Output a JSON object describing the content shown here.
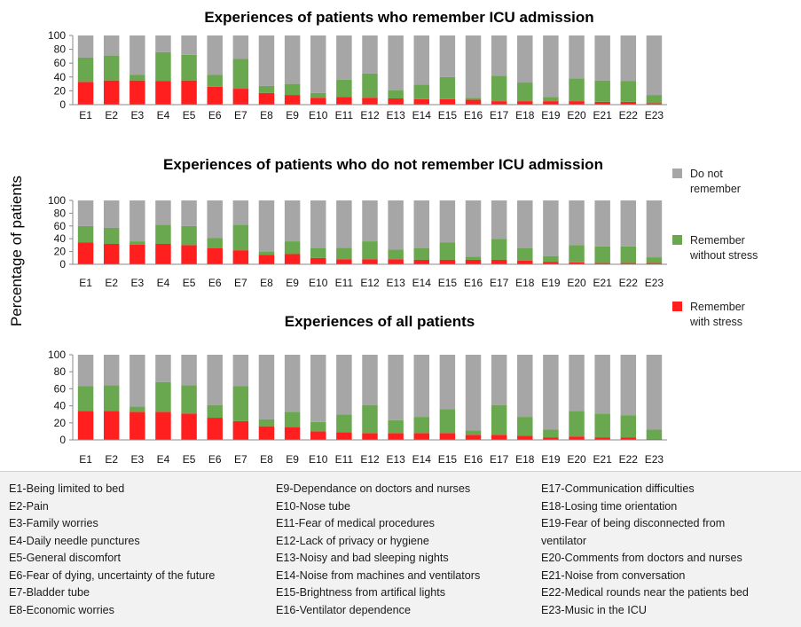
{
  "y_axis_label": "Percentage of patients",
  "legend": [
    {
      "key": "dnr",
      "lines": [
        "Do not",
        "remember"
      ],
      "color": "#a6a6a6"
    },
    {
      "key": "rws",
      "lines": [
        "Remember",
        "without stress"
      ],
      "color": "#6aa84f"
    },
    {
      "key": "rs",
      "lines": [
        "Remember",
        "with stress"
      ],
      "color": "#ff1f1f"
    }
  ],
  "chart_data": [
    {
      "type": "bar",
      "stacked": true,
      "title": "Experiences of patients who remember ICU admission",
      "categories": [
        "E1",
        "E2",
        "E3",
        "E4",
        "E5",
        "E6",
        "E7",
        "E8",
        "E9",
        "E10",
        "E11",
        "E12",
        "E13",
        "E14",
        "E15",
        "E16",
        "E17",
        "E18",
        "E19",
        "E20",
        "E21",
        "E22",
        "E23"
      ],
      "ylim": [
        0,
        100
      ],
      "yticks": [
        0,
        20,
        40,
        60,
        80,
        100
      ],
      "series": [
        {
          "name": "Remember with stress",
          "values": [
            33,
            35,
            35,
            34,
            35,
            26,
            23,
            17,
            14,
            10,
            11,
            10,
            9,
            8,
            8,
            7,
            5,
            5,
            5,
            5,
            4,
            4,
            2
          ]
        },
        {
          "name": "Remember without stress",
          "values": [
            35,
            36,
            8,
            42,
            37,
            17,
            43,
            10,
            16,
            7,
            25,
            35,
            12,
            21,
            32,
            3,
            37,
            27,
            6,
            33,
            31,
            30,
            12
          ]
        },
        {
          "name": "Do not remember",
          "values": [
            32,
            29,
            57,
            24,
            28,
            57,
            34,
            73,
            70,
            83,
            64,
            55,
            79,
            71,
            60,
            90,
            58,
            68,
            89,
            62,
            65,
            66,
            86
          ]
        }
      ]
    },
    {
      "type": "bar",
      "stacked": true,
      "title": "Experiences of patients who do not remember ICU admission",
      "categories": [
        "E1",
        "E2",
        "E3",
        "E4",
        "E5",
        "E6",
        "E7",
        "E8",
        "E9",
        "E10",
        "E11",
        "E12",
        "E13",
        "E14",
        "E15",
        "E16",
        "E17",
        "E18",
        "E19",
        "E20",
        "E21",
        "E22",
        "E23"
      ],
      "ylim": [
        0,
        100
      ],
      "yticks": [
        0,
        20,
        40,
        60,
        80,
        100
      ],
      "series": [
        {
          "name": "Remember with stress",
          "values": [
            34,
            32,
            31,
            32,
            30,
            25,
            22,
            15,
            16,
            10,
            8,
            8,
            8,
            7,
            7,
            7,
            7,
            6,
            4,
            3,
            2,
            2,
            2
          ]
        },
        {
          "name": "Remember without stress",
          "values": [
            26,
            25,
            5,
            30,
            30,
            16,
            40,
            5,
            20,
            15,
            18,
            28,
            15,
            18,
            27,
            5,
            33,
            19,
            9,
            27,
            26,
            26,
            9
          ]
        },
        {
          "name": "Do not remember",
          "values": [
            40,
            43,
            64,
            38,
            40,
            59,
            38,
            80,
            64,
            75,
            74,
            64,
            77,
            75,
            66,
            88,
            60,
            75,
            87,
            70,
            72,
            72,
            89
          ]
        }
      ]
    },
    {
      "type": "bar",
      "stacked": true,
      "title": "Experiences of all patients",
      "categories": [
        "E1",
        "E2",
        "E3",
        "E4",
        "E5",
        "E6",
        "E7",
        "E8",
        "E9",
        "E10",
        "E11",
        "E12",
        "E13",
        "E14",
        "E15",
        "E16",
        "E17",
        "E18",
        "E19",
        "E20",
        "E21",
        "E22",
        "E23"
      ],
      "ylim": [
        0,
        100
      ],
      "yticks": [
        0,
        20,
        40,
        60,
        80,
        100
      ],
      "series": [
        {
          "name": "Remember with stress",
          "values": [
            34,
            34,
            33,
            33,
            31,
            26,
            22,
            16,
            15,
            10,
            9,
            8,
            8,
            8,
            8,
            6,
            6,
            5,
            3,
            4,
            3,
            3,
            1
          ]
        },
        {
          "name": "Remember without stress",
          "values": [
            29,
            30,
            6,
            35,
            33,
            15,
            41,
            8,
            18,
            11,
            21,
            33,
            15,
            19,
            28,
            5,
            35,
            22,
            9,
            30,
            28,
            26,
            11
          ]
        },
        {
          "name": "Do not remember",
          "values": [
            37,
            36,
            61,
            32,
            36,
            59,
            37,
            76,
            67,
            79,
            70,
            59,
            77,
            73,
            64,
            89,
            59,
            73,
            88,
            66,
            69,
            71,
            88
          ]
        }
      ]
    }
  ],
  "abbreviations": {
    "col1": [
      "E1-Being limited to bed",
      "E2-Pain",
      "E3-Family worries",
      "E4-Daily needle punctures",
      "E5-General discomfort",
      "E6-Fear of dying, uncertainty  of the future",
      "E7-Bladder tube",
      "E8-Economic worries"
    ],
    "col2": [
      "E9-Dependance on doctors and nurses",
      "E10-Nose tube",
      "E11-Fear of medical procedures",
      "E12-Lack of privacy or hygiene",
      "E13-Noisy and bad sleeping nights",
      "E14-Noise from machines and ventilators",
      "E15-Brightness from artifical lights",
      "E16-Ventilator dependence"
    ],
    "col3": [
      "E17-Communication  difficulties",
      "E18-Losing time orientation",
      "E19-Fear of being disconnected from",
      "ventilator",
      "E20-Comments from doctors  and nurses",
      "E21-Noise from conversation",
      "E22-Medical rounds near the patients bed",
      "E23-Music in the ICU"
    ]
  }
}
